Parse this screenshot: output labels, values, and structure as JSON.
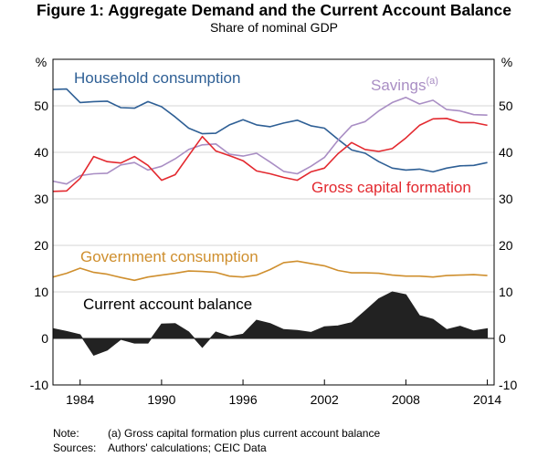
{
  "header": {
    "title": "Figure 1: Aggregate Demand and the Current Account Balance",
    "subtitle": "Share of nominal GDP"
  },
  "chart_data": {
    "type": "line",
    "title": "Figure 1: Aggregate Demand and the Current Account Balance",
    "subtitle": "Share of nominal GDP",
    "left_unit": "%",
    "right_unit": "%",
    "xlim": [
      1982,
      2014.5
    ],
    "ylim": [
      -10,
      60
    ],
    "grid": true,
    "x_ticks": [
      1984,
      1990,
      1996,
      2002,
      2008,
      2014
    ],
    "y_ticks": [
      -10,
      0,
      10,
      20,
      30,
      40,
      50
    ],
    "x": [
      1982,
      1983,
      1984,
      1985,
      1986,
      1987,
      1988,
      1989,
      1990,
      1991,
      1992,
      1993,
      1994,
      1995,
      1996,
      1997,
      1998,
      1999,
      2000,
      2001,
      2002,
      2003,
      2004,
      2005,
      2006,
      2007,
      2008,
      2009,
      2010,
      2011,
      2012,
      2013,
      2014
    ],
    "series": [
      {
        "name": "Household consumption",
        "label": "Household consumption",
        "color": "#2e5f95",
        "kind": "line",
        "values": [
          53.5,
          53.6,
          50.7,
          50.9,
          51.0,
          49.6,
          49.5,
          50.9,
          49.8,
          47.6,
          45.2,
          44.0,
          44.1,
          45.9,
          47.0,
          45.9,
          45.5,
          46.3,
          46.9,
          45.7,
          45.2,
          42.8,
          40.5,
          39.8,
          38.0,
          36.6,
          36.2,
          36.4,
          35.8,
          36.6,
          37.1,
          37.2,
          37.8
        ]
      },
      {
        "name": "Savings",
        "label": "Savings",
        "label_superscript": "(a)",
        "color": "#a98ec4",
        "kind": "line",
        "values": [
          33.8,
          33.2,
          35.0,
          35.4,
          35.5,
          37.3,
          37.8,
          36.2,
          37.0,
          38.6,
          40.6,
          41.6,
          41.8,
          39.6,
          39.2,
          39.8,
          37.9,
          35.9,
          35.4,
          37.0,
          38.9,
          42.6,
          45.7,
          46.6,
          48.9,
          50.7,
          51.8,
          50.4,
          51.2,
          49.2,
          48.9,
          48.1,
          48.0
        ]
      },
      {
        "name": "Gross capital formation",
        "label": "Gross capital formation",
        "color": "#e3292f",
        "kind": "line",
        "values": [
          31.6,
          31.7,
          34.4,
          39.1,
          38.0,
          37.7,
          39.1,
          37.2,
          34.0,
          35.2,
          39.3,
          43.4,
          40.3,
          39.3,
          38.2,
          36.0,
          35.4,
          34.6,
          34.0,
          35.8,
          36.6,
          39.7,
          42.1,
          40.6,
          40.2,
          40.8,
          43.1,
          45.8,
          47.2,
          47.3,
          46.4,
          46.4,
          45.8
        ]
      },
      {
        "name": "Government consumption",
        "label": "Government consumption",
        "color": "#cf8f2e",
        "kind": "line",
        "values": [
          13.2,
          14.0,
          15.1,
          14.2,
          13.8,
          13.1,
          12.5,
          13.2,
          13.6,
          14.0,
          14.5,
          14.4,
          14.2,
          13.4,
          13.2,
          13.6,
          14.8,
          16.3,
          16.6,
          16.1,
          15.6,
          14.6,
          14.1,
          14.1,
          14.0,
          13.6,
          13.4,
          13.4,
          13.2,
          13.5,
          13.6,
          13.7,
          13.5
        ]
      },
      {
        "name": "Current account balance",
        "label": "Current account balance",
        "color": "#222222",
        "kind": "area",
        "values": [
          2.1,
          1.5,
          0.8,
          -3.6,
          -2.5,
          -0.2,
          -1.0,
          -1.0,
          3.1,
          3.2,
          1.4,
          -1.9,
          1.4,
          0.4,
          0.9,
          3.9,
          3.2,
          1.9,
          1.7,
          1.3,
          2.5,
          2.7,
          3.4,
          5.9,
          8.5,
          10.0,
          9.4,
          4.9,
          4.1,
          1.9,
          2.6,
          1.6,
          2.1
        ]
      }
    ]
  },
  "notes": {
    "note_label": "Note:",
    "note_text": "(a) Gross capital formation plus current account balance",
    "sources_label": "Sources:",
    "sources_text": "Authors' calculations; CEIC Data"
  }
}
